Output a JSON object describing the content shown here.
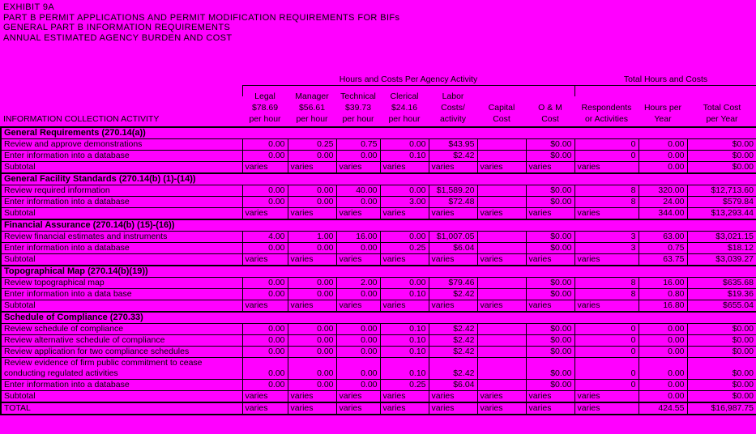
{
  "page": {
    "bg_color": "#ff00ff",
    "title_lines": [
      "EXHIBIT 9A",
      "PART B PERMIT APPLICATIONS AND PERMIT MODIFICATION REQUIREMENTS FOR BIFs",
      "GENERAL PART B INFORMATION REQUIREMENTS",
      "ANNUAL ESTIMATED AGENCY BURDEN AND COST"
    ]
  },
  "table": {
    "group_header_left": "Hours and Costs Per Agency Activity",
    "group_header_right": "Total Hours and Costs",
    "activity_header": "INFORMATION COLLECTION ACTIVITY",
    "column_headers": [
      {
        "id": "legal",
        "lines": [
          "Legal",
          "$78.69",
          "per hour"
        ]
      },
      {
        "id": "manager",
        "lines": [
          "Manager",
          "$56.61",
          "per hour"
        ]
      },
      {
        "id": "technical",
        "lines": [
          "Technical",
          "$39.73",
          "per hour"
        ]
      },
      {
        "id": "clerical",
        "lines": [
          "Clerical",
          "$24.16",
          "per hour"
        ]
      },
      {
        "id": "labor-costs",
        "lines": [
          "Labor",
          "Costs/",
          "activity"
        ]
      },
      {
        "id": "capital-cost",
        "lines": [
          "",
          "Capital",
          "Cost"
        ]
      },
      {
        "id": "om-cost",
        "lines": [
          "",
          "O & M",
          "Cost"
        ]
      },
      {
        "id": "respondents",
        "lines": [
          "",
          "Respondents",
          "or Activities"
        ]
      },
      {
        "id": "hours-year",
        "lines": [
          "",
          "Hours per",
          "Year"
        ]
      },
      {
        "id": "total-cost",
        "lines": [
          "",
          "Total Cost",
          "per Year"
        ]
      }
    ],
    "sections": [
      {
        "title": "General Requirements (270.14(a))",
        "rows": [
          {
            "label": "Review and approve demonstrations",
            "values": [
              "0.00",
              "0.25",
              "0.75",
              "0.00",
              "$43.95",
              "",
              "$0.00",
              "0",
              "0.00",
              "$0.00"
            ]
          },
          {
            "label": "Enter information into a database",
            "values": [
              "0.00",
              "0.00",
              "0.00",
              "0.10",
              "$2.42",
              "",
              "$0.00",
              "0",
              "0.00",
              "$0.00"
            ]
          },
          {
            "label": "Subtotal",
            "values": [
              "varies",
              "varies",
              "varies",
              "varies",
              "varies",
              "varies",
              "varies",
              "varies",
              "0.00",
              "$0.00"
            ]
          }
        ]
      },
      {
        "title": "General Facility Standards (270.14(b) (1)-(14))",
        "rows": [
          {
            "label": "Review required information",
            "values": [
              "0.00",
              "0.00",
              "40.00",
              "0.00",
              "$1,589.20",
              "",
              "$0.00",
              "8",
              "320.00",
              "$12,713.60"
            ]
          },
          {
            "label": "Enter information into a database",
            "values": [
              "0.00",
              "0.00",
              "0.00",
              "3.00",
              "$72.48",
              "",
              "$0.00",
              "8",
              "24.00",
              "$579.84"
            ]
          },
          {
            "label": "Subtotal",
            "values": [
              "varies",
              "varies",
              "varies",
              "varies",
              "varies",
              "varies",
              "varies",
              "varies",
              "344.00",
              "$13,293.44"
            ]
          }
        ]
      },
      {
        "title": "Financial Assurance (270.14(b) (15)-(16))",
        "rows": [
          {
            "label": "Review financial estimates and instruments",
            "values": [
              "4.00",
              "1.00",
              "16.00",
              "0.00",
              "$1,007.05",
              "",
              "$0.00",
              "3",
              "63.00",
              "$3,021.15"
            ]
          },
          {
            "label": "Enter information into a database",
            "values": [
              "0.00",
              "0.00",
              "0.00",
              "0.25",
              "$6.04",
              "",
              "$0.00",
              "3",
              "0.75",
              "$18.12"
            ]
          },
          {
            "label": "Subtotal",
            "values": [
              "varies",
              "varies",
              "varies",
              "varies",
              "varies",
              "varies",
              "varies",
              "varies",
              "63.75",
              "$3,039.27"
            ]
          }
        ]
      },
      {
        "title": "Topographical Map (270.14(b)(19))",
        "rows": [
          {
            "label": "Review topographical map",
            "values": [
              "0.00",
              "0.00",
              "2.00",
              "0.00",
              "$79.46",
              "",
              "$0.00",
              "8",
              "16.00",
              "$635.68"
            ]
          },
          {
            "label": "Enter information into a data base",
            "values": [
              "0.00",
              "0.00",
              "0.00",
              "0.10",
              "$2.42",
              "",
              "$0.00",
              "8",
              "0.80",
              "$19.36"
            ]
          },
          {
            "label": "Subtotal",
            "values": [
              "varies",
              "varies",
              "varies",
              "varies",
              "varies",
              "varies",
              "varies",
              "varies",
              "16.80",
              "$655.04"
            ]
          }
        ]
      },
      {
        "title": "Schedule of Compliance (270.33)",
        "rows": [
          {
            "label": "Review schedule of compliance",
            "values": [
              "0.00",
              "0.00",
              "0.00",
              "0.10",
              "$2.42",
              "",
              "$0.00",
              "0",
              "0.00",
              "$0.00"
            ]
          },
          {
            "label": "Review alternative schedule of compliance",
            "values": [
              "0.00",
              "0.00",
              "0.00",
              "0.10",
              "$2.42",
              "",
              "$0.00",
              "0",
              "0.00",
              "$0.00"
            ]
          },
          {
            "label": "Review application for two compliance schedules",
            "values": [
              "0.00",
              "0.00",
              "0.00",
              "0.10",
              "$2.42",
              "",
              "$0.00",
              "0",
              "0.00",
              "$0.00"
            ]
          },
          {
            "label": "Review evidence of firm public commitment to cease\nconducting regulated activities",
            "values": [
              "0.00",
              "0.00",
              "0.00",
              "0.10",
              "$2.42",
              "",
              "$0.00",
              "0",
              "0.00",
              "$0.00"
            ]
          },
          {
            "label": "Enter information into a database",
            "values": [
              "0.00",
              "0.00",
              "0.00",
              "0.25",
              "$6.04",
              "",
              "$0.00",
              "0",
              "0.00",
              "$0.00"
            ]
          },
          {
            "label": "Subtotal",
            "values": [
              "varies",
              "varies",
              "varies",
              "varies",
              "varies",
              "varies",
              "varies",
              "varies",
              "0.00",
              "$0.00"
            ]
          }
        ]
      }
    ],
    "total_row": {
      "label": "TOTAL",
      "values": [
        "varies",
        "varies",
        "varies",
        "varies",
        "varies",
        "varies",
        "varies",
        "varies",
        "424.55",
        "$16,987.75"
      ]
    }
  }
}
